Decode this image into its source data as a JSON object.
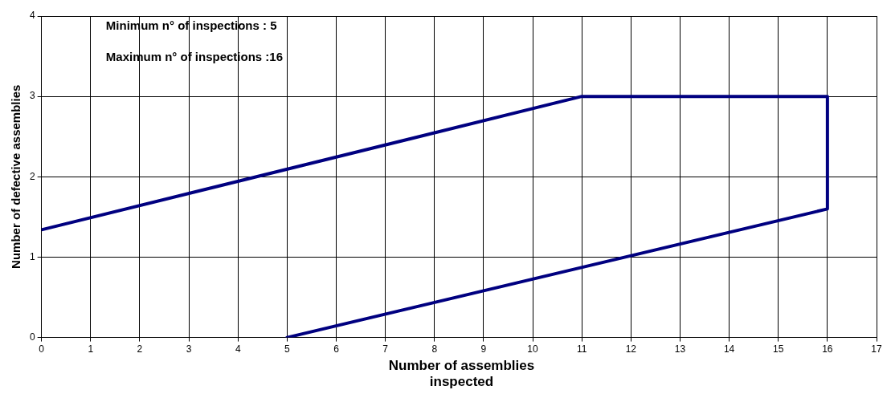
{
  "chart_data": {
    "type": "line",
    "xlabel": "Number of assemblies inspected",
    "ylabel": "Number of defective assemblies",
    "annotations": [
      "Minimum n° of inspections : 5",
      "Maximum n° of inspections :16"
    ],
    "series": [
      {
        "color": "#000080",
        "x": [
          0,
          11,
          16,
          16,
          5
        ],
        "values": [
          1.34,
          3,
          3,
          1.6,
          0
        ]
      }
    ],
    "xlim": [
      0,
      17
    ],
    "xticks": [
      0,
      1,
      2,
      3,
      4,
      5,
      6,
      7,
      8,
      9,
      10,
      11,
      12,
      13,
      14,
      15,
      16,
      17
    ],
    "ylim": [
      0,
      4
    ],
    "yticks": [
      0,
      1,
      2,
      3,
      4
    ],
    "grid": true,
    "legend": false,
    "marker": "none",
    "line_style": "solid"
  }
}
